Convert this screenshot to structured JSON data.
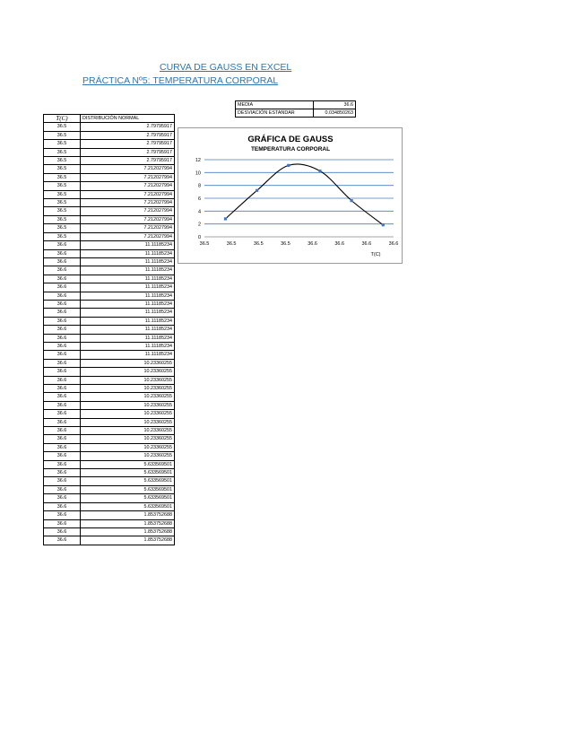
{
  "title": "CURVA DE GAUSS EN EXCEL",
  "subtitle": "PRÁCTICA Nº5: TEMPERATURA CORPORAL",
  "stats": [
    {
      "label": "MEDIA",
      "value": "36.6"
    },
    {
      "label": "DESVIACIÓN ESTANDAR",
      "value": "0.034850263"
    }
  ],
  "table": {
    "headers": [
      "T(C)",
      "DISTRIBUCIÓN NORMAL"
    ],
    "rows": [
      [
        "36.5",
        "2.79795917"
      ],
      [
        "36.5",
        "2.79795917"
      ],
      [
        "36.5",
        "2.79795917"
      ],
      [
        "36.5",
        "2.79795917"
      ],
      [
        "36.5",
        "2.79795917"
      ],
      [
        "36.5",
        "7.212027994"
      ],
      [
        "36.5",
        "7.212027994"
      ],
      [
        "36.5",
        "7.212027994"
      ],
      [
        "36.5",
        "7.212027994"
      ],
      [
        "36.5",
        "7.212027994"
      ],
      [
        "36.5",
        "7.212027994"
      ],
      [
        "36.5",
        "7.212027994"
      ],
      [
        "36.5",
        "7.212027994"
      ],
      [
        "36.5",
        "7.212027994"
      ],
      [
        "36.6",
        "11.11185234"
      ],
      [
        "36.6",
        "11.11185234"
      ],
      [
        "36.6",
        "11.11185234"
      ],
      [
        "36.6",
        "11.11185234"
      ],
      [
        "36.6",
        "11.11185234"
      ],
      [
        "36.6",
        "11.11185234"
      ],
      [
        "36.6",
        "11.11185234"
      ],
      [
        "36.6",
        "11.11185234"
      ],
      [
        "36.6",
        "11.11185234"
      ],
      [
        "36.6",
        "11.11185234"
      ],
      [
        "36.6",
        "11.11185234"
      ],
      [
        "36.6",
        "11.11185234"
      ],
      [
        "36.6",
        "11.11185234"
      ],
      [
        "36.6",
        "11.11185234"
      ],
      [
        "36.6",
        "10.23360255"
      ],
      [
        "36.6",
        "10.23360255"
      ],
      [
        "36.6",
        "10.23360255"
      ],
      [
        "36.6",
        "10.23360255"
      ],
      [
        "36.6",
        "10.23360255"
      ],
      [
        "36.6",
        "10.23360255"
      ],
      [
        "36.6",
        "10.23360255"
      ],
      [
        "36.6",
        "10.23360255"
      ],
      [
        "36.6",
        "10.23360255"
      ],
      [
        "36.6",
        "10.23360255"
      ],
      [
        "36.6",
        "10.23360255"
      ],
      [
        "36.6",
        "10.23360255"
      ],
      [
        "36.6",
        "5.633569501"
      ],
      [
        "36.6",
        "5.633569501"
      ],
      [
        "36.6",
        "5.633569501"
      ],
      [
        "36.6",
        "5.633569501"
      ],
      [
        "36.6",
        "5.633569501"
      ],
      [
        "36.6",
        "5.633569501"
      ],
      [
        "36.6",
        "1.853752688"
      ],
      [
        "36.6",
        "1.853752688"
      ],
      [
        "36.6",
        "1.853752688"
      ],
      [
        "36.6",
        "1.853752688"
      ]
    ]
  },
  "chart_data": {
    "type": "scatter",
    "title": "GRÁFICA DE GAUSS",
    "subtitle": "TEMPERATURA CORPORAL",
    "xlabel": "T(C)",
    "ylabel": "",
    "ylim": [
      0,
      12
    ],
    "xlim": [
      36.48,
      36.66
    ],
    "yticks": [
      "0",
      "2",
      "4",
      "6",
      "8",
      "10",
      "12"
    ],
    "xticks": [
      "36.5",
      "36.5",
      "36.5",
      "36.5",
      "36.6",
      "36.6",
      "36.6",
      "36.6"
    ],
    "grid": true,
    "legend": "none",
    "line_color": "#000000",
    "marker_color": "#4472c4",
    "grid_color": "#4a7ebb",
    "points": [
      {
        "x": 36.5,
        "y": 2.79795917
      },
      {
        "x": 36.53,
        "y": 7.212027994
      },
      {
        "x": 36.56,
        "y": 11.11185234
      },
      {
        "x": 36.59,
        "y": 10.23360255
      },
      {
        "x": 36.62,
        "y": 5.633569501
      },
      {
        "x": 36.65,
        "y": 1.853752688
      }
    ]
  }
}
